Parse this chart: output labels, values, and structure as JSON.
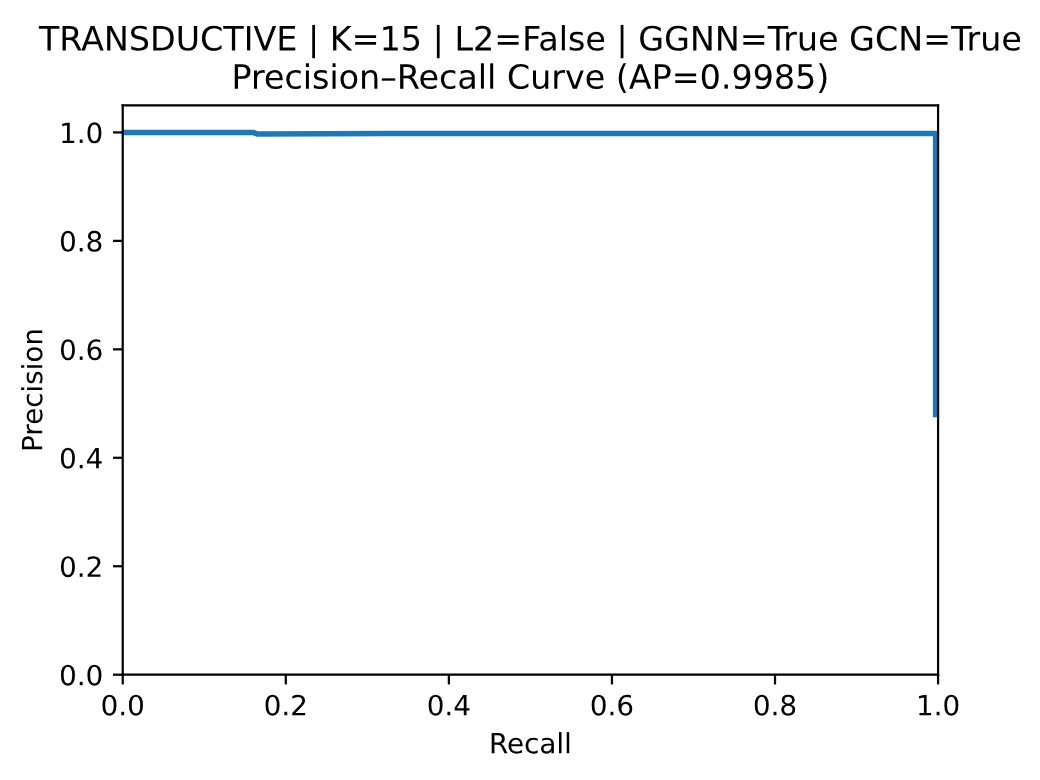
{
  "chart_data": {
    "type": "line",
    "title": "TRANSDUCTIVE | K=15 | L2=False | GGNN=True GCN=True\nPrecision–Recall Curve (AP=0.9985)",
    "xlabel": "Recall",
    "ylabel": "Precision",
    "series": [
      {
        "color": "#1f77b4",
        "x": [
          0.0,
          0.16,
          0.165,
          0.33,
          0.55,
          0.997,
          0.997
        ],
        "values": [
          1.0,
          1.0,
          0.997,
          0.998,
          0.998,
          0.998,
          0.48
        ]
      }
    ],
    "xlim": [
      0,
      1
    ],
    "ylim": [
      0,
      1.05
    ],
    "xticks": [
      {
        "value": 0,
        "label": "0.0"
      },
      0.2,
      0.4,
      0.6,
      0.8,
      {
        "value": 1,
        "label": "1.0"
      }
    ],
    "yticks": [
      {
        "value": 0,
        "label": "0.0"
      },
      0.2,
      0.4,
      0.6,
      0.8,
      {
        "value": 1,
        "label": "1.0"
      }
    ],
    "grid": false,
    "legend": false,
    "marker": "none",
    "line_style": "solid"
  }
}
